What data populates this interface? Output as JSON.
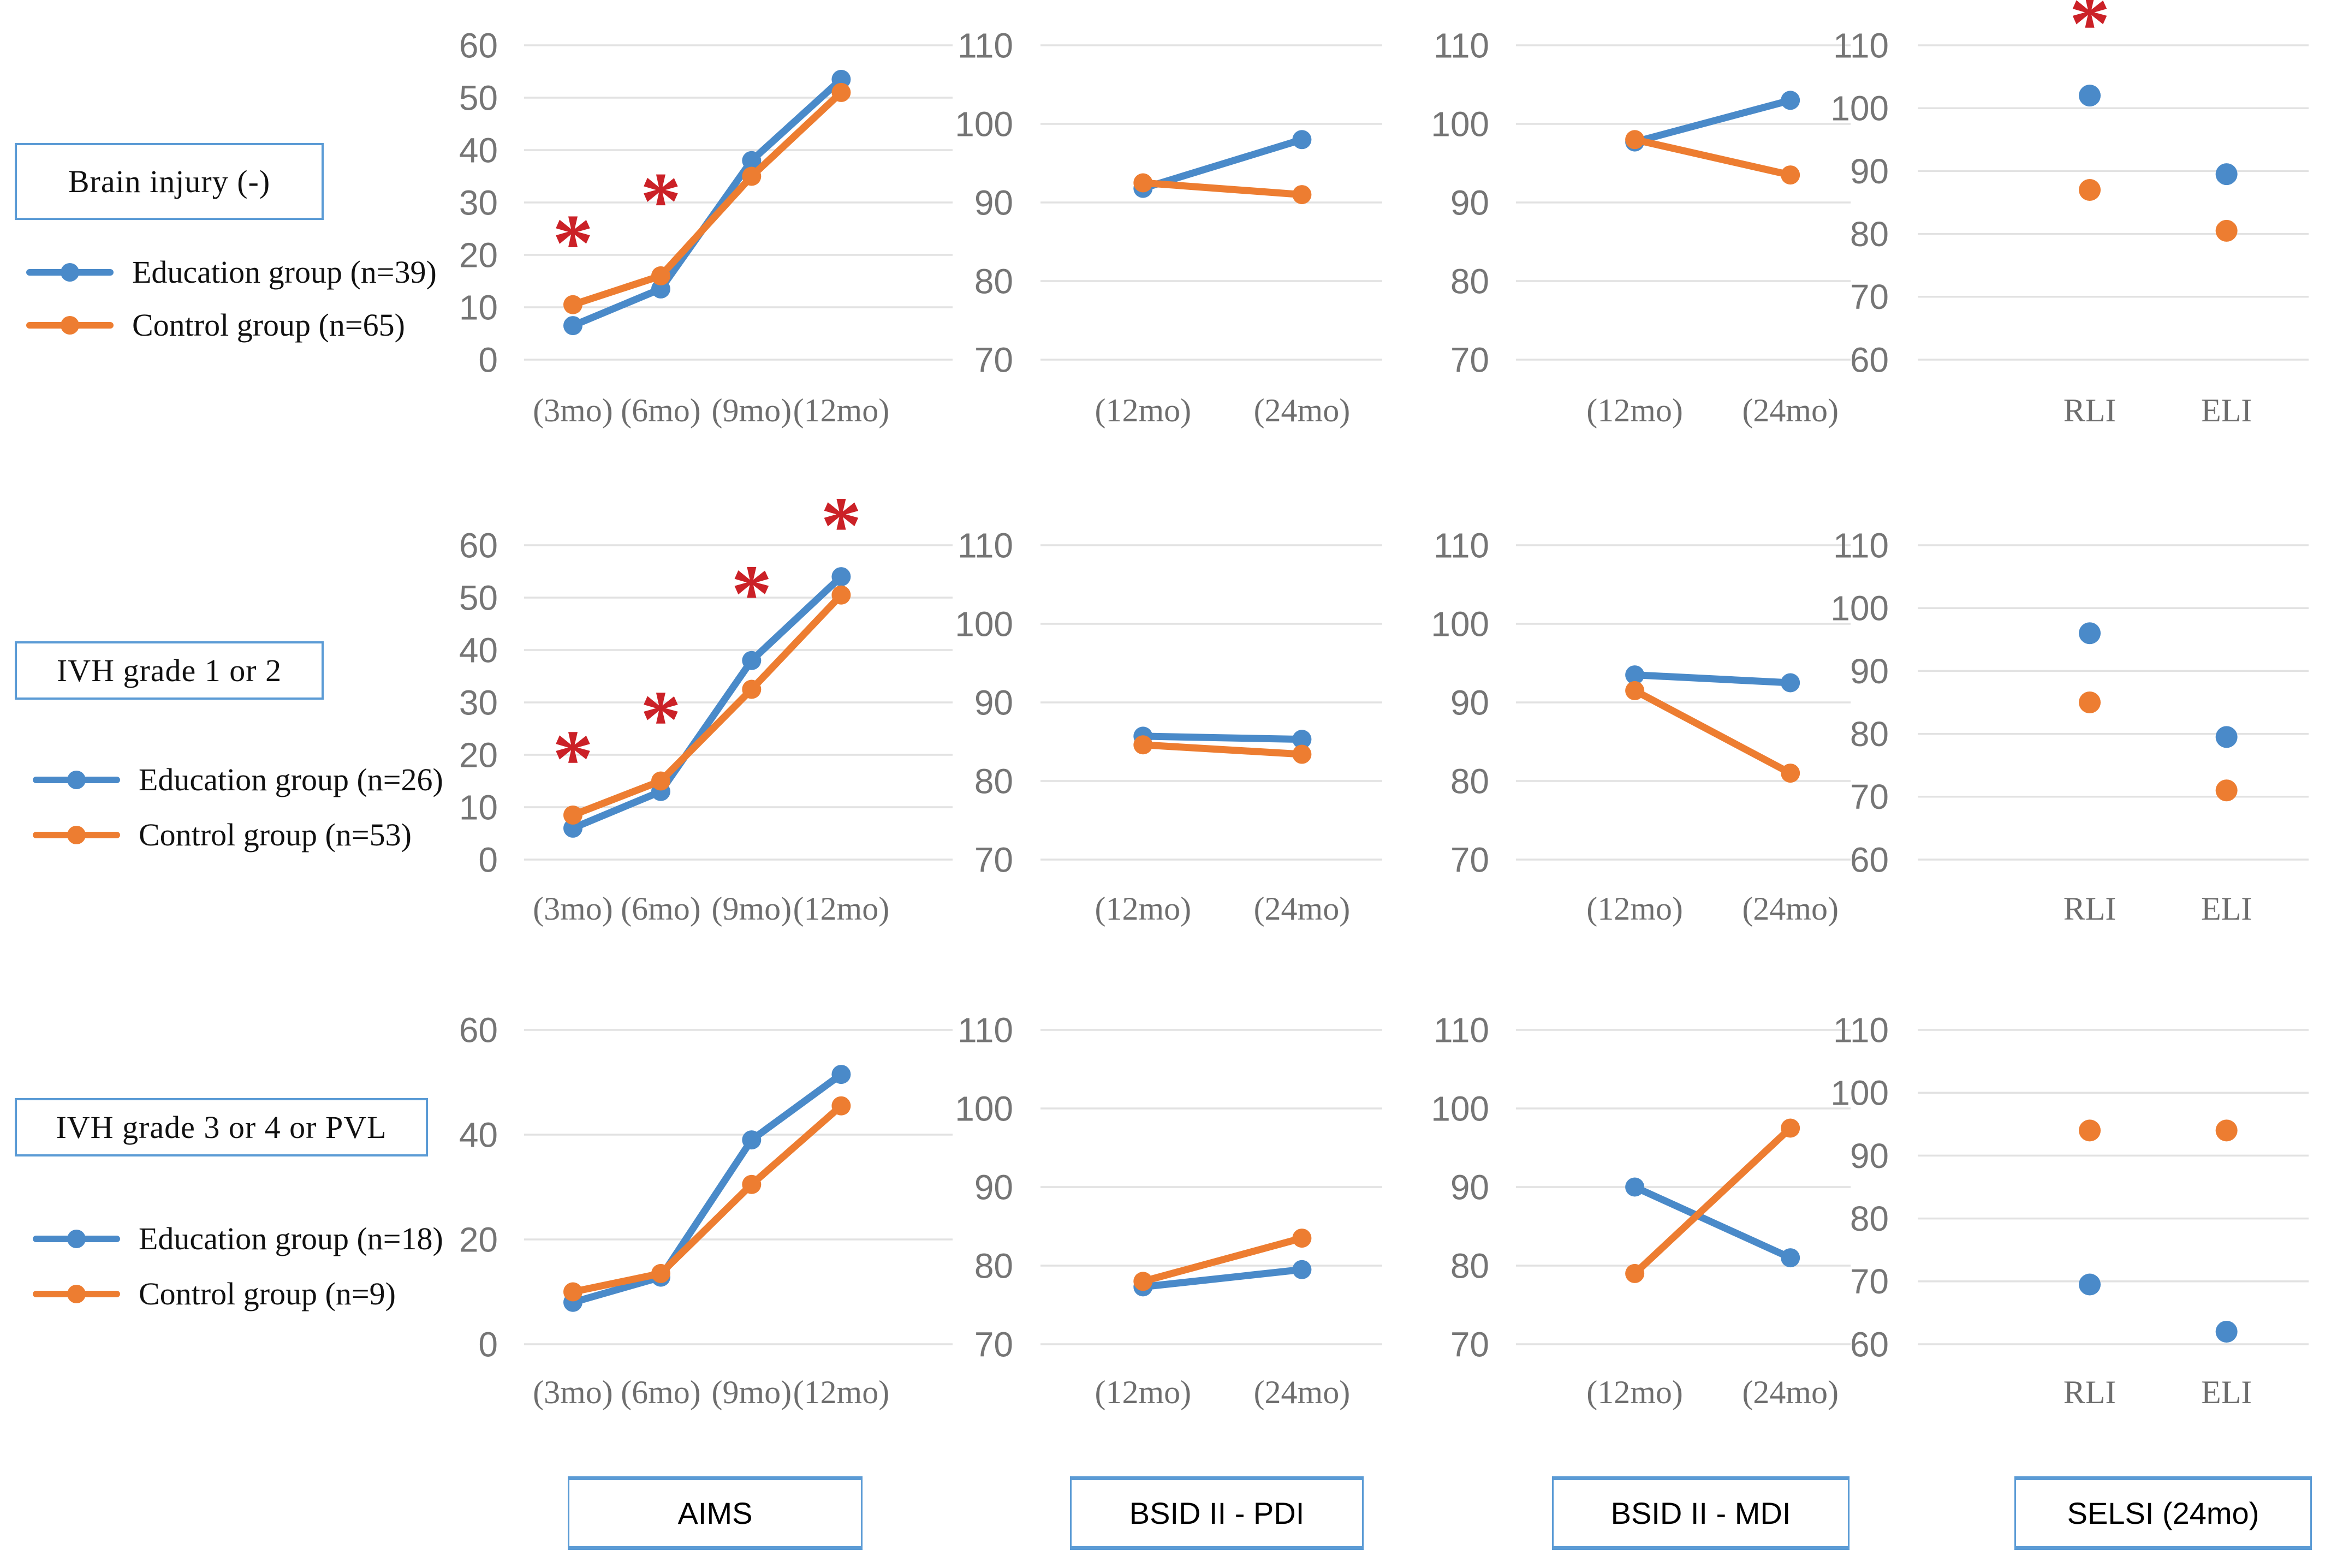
{
  "colors": {
    "education": "#4A8AC9",
    "control": "#ED7D31",
    "asterisk": "#CB2127",
    "grid": "#E2E2E2",
    "tick_text": "#757575",
    "category_text": "#6E6E6E",
    "box_border": "#5B9BD5"
  },
  "asterisk_symbol": "*",
  "rows": [
    {
      "label": "Brain injury (-)",
      "legend": [
        {
          "group": "education",
          "label": "Education group (n=39)"
        },
        {
          "group": "control",
          "label": "Control group (n=65)"
        }
      ]
    },
    {
      "label": "IVH grade 1 or 2",
      "legend": [
        {
          "group": "education",
          "label": "Education group (n=26)"
        },
        {
          "group": "control",
          "label": "Control group (n=53)"
        }
      ]
    },
    {
      "label": "IVH grade 3 or 4 or PVL",
      "legend": [
        {
          "group": "education",
          "label": "Education group (n=18)"
        },
        {
          "group": "control",
          "label": "Control group (n=9)"
        }
      ]
    }
  ],
  "columns": [
    {
      "label": "AIMS"
    },
    {
      "label": "BSID II - PDI"
    },
    {
      "label": "BSID II - MDI"
    },
    {
      "label": "SELSI (24mo)"
    }
  ],
  "chart_data": [
    {
      "row": 0,
      "col": 0,
      "type": "line",
      "title": "AIMS - Brain injury (-)",
      "categories": [
        "(3mo)",
        "(6mo)",
        "(9mo)",
        "(12mo)"
      ],
      "yticks": [
        0,
        10,
        20,
        30,
        40,
        50,
        60
      ],
      "ylim": [
        0,
        66
      ],
      "series": [
        {
          "name": "Education group (n=39)",
          "color_key": "education",
          "values": [
            6.5,
            13.5,
            38,
            53.5
          ]
        },
        {
          "name": "Control group (n=65)",
          "color_key": "control",
          "values": [
            10.5,
            16,
            35,
            51
          ]
        }
      ],
      "asterisks": [
        {
          "x": "(3mo)",
          "y": 23.5
        },
        {
          "x": "(6mo)",
          "y": 31.5
        }
      ]
    },
    {
      "row": 0,
      "col": 1,
      "type": "line",
      "title": "BSID II - PDI - Brain injury (-)",
      "categories": [
        "(12mo)",
        "(24mo)"
      ],
      "yticks": [
        70,
        80,
        90,
        100,
        110
      ],
      "ylim": [
        64,
        113
      ],
      "series": [
        {
          "name": "Education group (n=39)",
          "color_key": "education",
          "values": [
            91.8,
            98
          ]
        },
        {
          "name": "Control group (n=65)",
          "color_key": "control",
          "values": [
            92.5,
            91
          ]
        }
      ],
      "asterisks": []
    },
    {
      "row": 0,
      "col": 2,
      "type": "line",
      "title": "BSID II - MDI - Brain injury (-)",
      "categories": [
        "(12mo)",
        "(24mo)"
      ],
      "yticks": [
        70,
        80,
        90,
        100,
        110
      ],
      "ylim": [
        64,
        113
      ],
      "series": [
        {
          "name": "Education group (n=39)",
          "color_key": "education",
          "values": [
            97.7,
            103
          ]
        },
        {
          "name": "Control group (n=65)",
          "color_key": "control",
          "values": [
            98,
            93.5
          ]
        }
      ],
      "asterisks": []
    },
    {
      "row": 0,
      "col": 3,
      "type": "scatter",
      "title": "SELSI (24mo) - Brain injury (-)",
      "categories": [
        "RLI",
        "ELI"
      ],
      "yticks": [
        60,
        70,
        80,
        90,
        100,
        110
      ],
      "ylim": [
        55,
        117
      ],
      "series": [
        {
          "name": "Education group (n=39)",
          "color_key": "education",
          "values": [
            102,
            89.5
          ]
        },
        {
          "name": "Control group (n=65)",
          "color_key": "control",
          "values": [
            87,
            80.5
          ]
        }
      ],
      "asterisks": [
        {
          "x": "RLI",
          "y": 114.5
        }
      ]
    },
    {
      "row": 1,
      "col": 0,
      "type": "line",
      "title": "AIMS - IVH grade 1 or 2",
      "categories": [
        "(3mo)",
        "(6mo)",
        "(9mo)",
        "(12mo)"
      ],
      "yticks": [
        0,
        10,
        20,
        30,
        40,
        50,
        60
      ],
      "ylim": [
        0,
        66
      ],
      "series": [
        {
          "name": "Education group (n=26)",
          "color_key": "education",
          "values": [
            6,
            13,
            38,
            54
          ]
        },
        {
          "name": "Control group (n=53)",
          "color_key": "control",
          "values": [
            8.5,
            15,
            32.5,
            50.5
          ]
        }
      ],
      "asterisks": [
        {
          "x": "(3mo)",
          "y": 20.5
        },
        {
          "x": "(6mo)",
          "y": 28
        },
        {
          "x": "(9mo)",
          "y": 52
        },
        {
          "x": "(12mo)",
          "y": 65
        }
      ]
    },
    {
      "row": 1,
      "col": 1,
      "type": "line",
      "title": "BSID II - PDI - IVH grade 1 or 2",
      "categories": [
        "(12mo)",
        "(24mo)"
      ],
      "yticks": [
        70,
        80,
        90,
        100,
        110
      ],
      "ylim": [
        64,
        113
      ],
      "series": [
        {
          "name": "Education group (n=26)",
          "color_key": "education",
          "values": [
            85.7,
            85.3
          ]
        },
        {
          "name": "Control group (n=53)",
          "color_key": "control",
          "values": [
            84.6,
            83.4
          ]
        }
      ],
      "asterisks": []
    },
    {
      "row": 1,
      "col": 2,
      "type": "line",
      "title": "BSID II - MDI - IVH grade 1 or 2",
      "categories": [
        "(12mo)",
        "(24mo)"
      ],
      "yticks": [
        70,
        80,
        90,
        100,
        110
      ],
      "ylim": [
        64,
        113
      ],
      "series": [
        {
          "name": "Education group (n=26)",
          "color_key": "education",
          "values": [
            93.5,
            92.5
          ]
        },
        {
          "name": "Control group (n=53)",
          "color_key": "control",
          "values": [
            91.5,
            81
          ]
        }
      ],
      "asterisks": []
    },
    {
      "row": 1,
      "col": 3,
      "type": "scatter",
      "title": "SELSI (24mo) - IVH grade 1 or 2",
      "categories": [
        "RLI",
        "ELI"
      ],
      "yticks": [
        60,
        70,
        80,
        90,
        100,
        110
      ],
      "ylim": [
        55,
        113
      ],
      "series": [
        {
          "name": "Education group (n=26)",
          "color_key": "education",
          "values": [
            96,
            79.5
          ]
        },
        {
          "name": "Control group (n=53)",
          "color_key": "control",
          "values": [
            85,
            71
          ]
        }
      ],
      "asterisks": []
    },
    {
      "row": 2,
      "col": 0,
      "type": "line",
      "title": "AIMS - IVH grade 3 or 4 or PVL",
      "categories": [
        "(3mo)",
        "(6mo)",
        "(9mo)",
        "(12mo)"
      ],
      "yticks": [
        0,
        20,
        40,
        60
      ],
      "ylim": [
        0,
        66
      ],
      "series": [
        {
          "name": "Education group (n=18)",
          "color_key": "education",
          "values": [
            8,
            12.8,
            39,
            51.5
          ]
        },
        {
          "name": "Control group (n=9)",
          "color_key": "control",
          "values": [
            10,
            13.5,
            30.5,
            45.5
          ]
        }
      ],
      "asterisks": []
    },
    {
      "row": 2,
      "col": 1,
      "type": "line",
      "title": "BSID II - PDI - IVH grade 3 or 4 or PVL",
      "categories": [
        "(12mo)",
        "(24mo)"
      ],
      "yticks": [
        70,
        80,
        90,
        100,
        110
      ],
      "ylim": [
        64,
        113
      ],
      "series": [
        {
          "name": "Education group (n=18)",
          "color_key": "education",
          "values": [
            77.3,
            79.5
          ]
        },
        {
          "name": "Control group (n=9)",
          "color_key": "control",
          "values": [
            78,
            83.5
          ]
        }
      ],
      "asterisks": []
    },
    {
      "row": 2,
      "col": 2,
      "type": "line",
      "title": "BSID II - MDI - IVH grade 3 or 4 or PVL",
      "categories": [
        "(12mo)",
        "(24mo)"
      ],
      "yticks": [
        70,
        80,
        90,
        100,
        110
      ],
      "ylim": [
        64,
        113
      ],
      "series": [
        {
          "name": "Education group (n=18)",
          "color_key": "education",
          "values": [
            90,
            81
          ]
        },
        {
          "name": "Control group (n=9)",
          "color_key": "control",
          "values": [
            79,
            97.5
          ]
        }
      ],
      "asterisks": []
    },
    {
      "row": 2,
      "col": 3,
      "type": "scatter",
      "title": "SELSI (24mo) - IVH grade 3 or 4 or PVL",
      "categories": [
        "RLI",
        "ELI"
      ],
      "yticks": [
        60,
        70,
        80,
        90,
        100,
        110
      ],
      "ylim": [
        55,
        113
      ],
      "series": [
        {
          "name": "Education group (n=18)",
          "color_key": "education",
          "values": [
            69.5,
            62
          ]
        },
        {
          "name": "Control group (n=9)",
          "color_key": "control",
          "values": [
            94,
            94
          ]
        }
      ],
      "asterisks": []
    }
  ]
}
